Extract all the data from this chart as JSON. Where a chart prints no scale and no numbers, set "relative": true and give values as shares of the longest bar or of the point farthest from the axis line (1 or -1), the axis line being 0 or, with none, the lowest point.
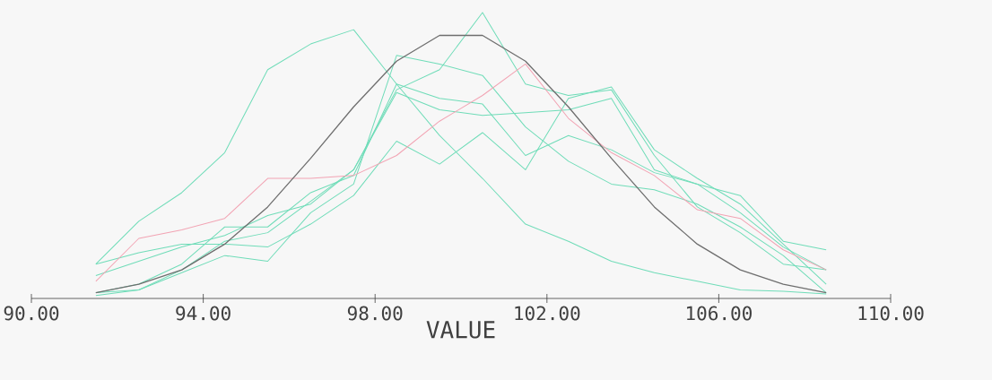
{
  "chart_data": {
    "type": "line",
    "relative": true,
    "xlabel": "VALUE",
    "x": [
      91.5,
      92.5,
      93.5,
      94.5,
      95.5,
      96.5,
      97.5,
      98.5,
      99.5,
      100.5,
      101.5,
      102.5,
      103.5,
      104.5,
      105.5,
      106.5,
      107.5,
      108.5
    ],
    "xlim": [
      90,
      110
    ],
    "xticks": [
      {
        "value": 90,
        "label": "90.00"
      },
      {
        "value": 94,
        "label": "94.00"
      },
      {
        "value": 98,
        "label": "98.00"
      },
      {
        "value": 102,
        "label": "102.00"
      },
      {
        "value": 106,
        "label": "106.00"
      },
      {
        "value": 110,
        "label": "110.00"
      }
    ],
    "series": [
      {
        "color": "#6fdcb8",
        "values": [
          0.12,
          0.27,
          0.37,
          0.51,
          0.8,
          0.89,
          0.94,
          0.75,
          0.57,
          0.42,
          0.26,
          0.2,
          0.13,
          0.09,
          0.06,
          0.03,
          0.025,
          0.016
        ]
      },
      {
        "color": "#6fdcb8",
        "values": [
          0.02,
          0.03,
          0.1,
          0.2,
          0.23,
          0.34,
          0.45,
          0.73,
          0.8,
          1.0,
          0.75,
          0.71,
          0.73,
          0.5,
          0.32,
          0.23,
          0.12,
          0.1
        ]
      },
      {
        "color": "#6fdcb8",
        "values": [
          0.08,
          0.13,
          0.18,
          0.22,
          0.29,
          0.33,
          0.45,
          0.72,
          0.66,
          0.64,
          0.65,
          0.66,
          0.7,
          0.45,
          0.4,
          0.3,
          0.18,
          0.1
        ]
      },
      {
        "color": "#6fdcb8",
        "values": [
          0.02,
          0.05,
          0.12,
          0.25,
          0.25,
          0.37,
          0.43,
          0.75,
          0.7,
          0.68,
          0.5,
          0.57,
          0.52,
          0.44,
          0.4,
          0.36,
          0.2,
          0.17
        ]
      },
      {
        "color": "#6fdcb8",
        "values": [
          0.01,
          0.03,
          0.09,
          0.15,
          0.13,
          0.3,
          0.4,
          0.85,
          0.82,
          0.78,
          0.6,
          0.48,
          0.4,
          0.38,
          0.33,
          0.25,
          0.15,
          0.02
        ]
      },
      {
        "color": "#6fdcb8",
        "values": [
          0.12,
          0.16,
          0.19,
          0.19,
          0.18,
          0.26,
          0.36,
          0.55,
          0.47,
          0.58,
          0.45,
          0.7,
          0.74,
          0.52,
          0.42,
          0.33,
          0.19,
          0.05
        ]
      },
      {
        "color": "#f2a3b3",
        "values": [
          0.06,
          0.21,
          0.24,
          0.28,
          0.42,
          0.42,
          0.43,
          0.5,
          0.62,
          0.71,
          0.82,
          0.63,
          0.51,
          0.43,
          0.31,
          0.28,
          0.17,
          0.1
        ]
      },
      {
        "color": "#6e6e6e",
        "values": [
          0.02,
          0.05,
          0.1,
          0.19,
          0.32,
          0.49,
          0.67,
          0.83,
          0.92,
          0.92,
          0.83,
          0.67,
          0.49,
          0.32,
          0.19,
          0.1,
          0.05,
          0.02
        ]
      }
    ]
  }
}
